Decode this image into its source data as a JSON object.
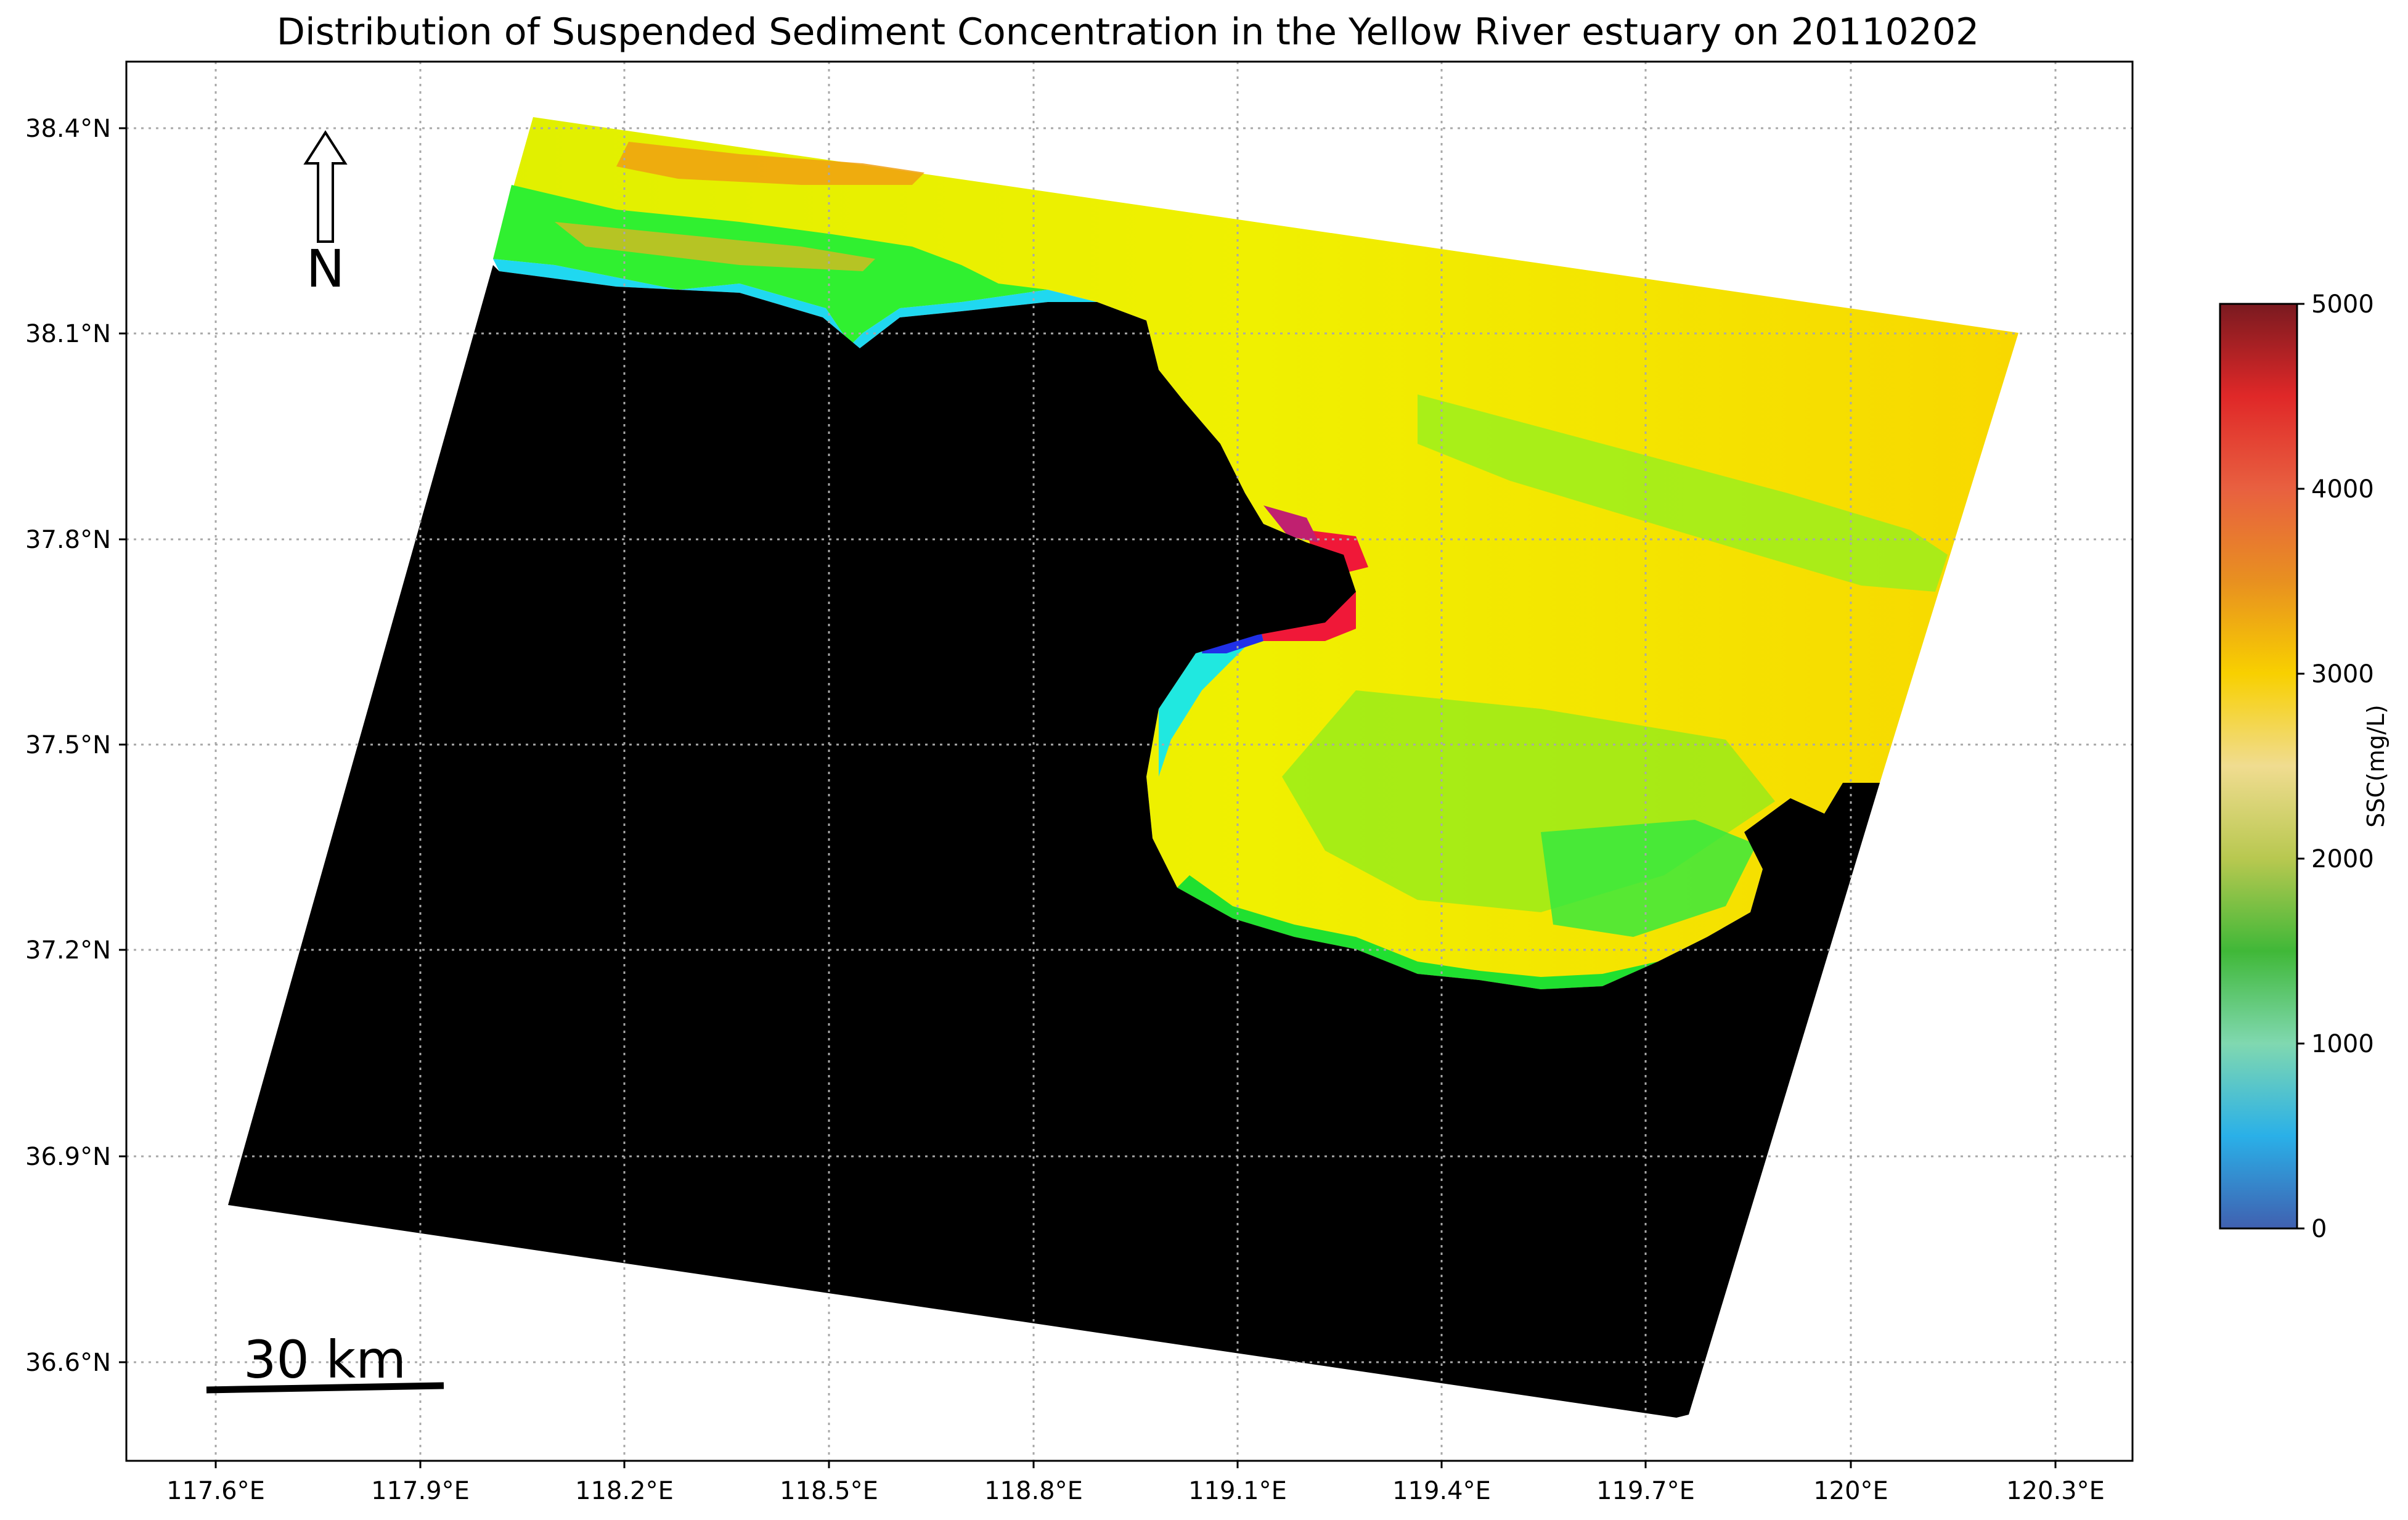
{
  "title": "Distribution of Suspended Sediment Concentration in the Yellow River estuary on 20110202",
  "map": {
    "lon_ticks": [
      "117.6°E",
      "117.9°E",
      "118.2°E",
      "118.5°E",
      "118.8°E",
      "119.1°E",
      "119.4°E",
      "119.7°E",
      "120°E",
      "120.3°E"
    ],
    "lat_ticks": [
      "38.4°N",
      "38.1°N",
      "37.8°N",
      "37.5°N",
      "37.2°N",
      "36.9°N",
      "36.6°N"
    ],
    "north_arrow_label": "N",
    "scale_bar_label": "30 km",
    "land_color": "#000000"
  },
  "colorbar": {
    "label": "SSC(mg/L)",
    "ticks": [
      "0",
      "1000",
      "2000",
      "3000",
      "4000",
      "5000"
    ],
    "range": [
      0,
      5000
    ],
    "stops": [
      "#4060b0",
      "#2ab0e8",
      "#80d8b0",
      "#40b838",
      "#b8c850",
      "#f0dc90",
      "#f8d000",
      "#e89020",
      "#e86040",
      "#e02828",
      "#7a1a20"
    ]
  },
  "chart_data": {
    "type": "heatmap",
    "title": "Distribution of Suspended Sediment Concentration in the Yellow River estuary on 20110202",
    "variable": "SSC(mg/L)",
    "value_range": [
      0,
      5000
    ],
    "lon_range": [
      117.5,
      120.45
    ],
    "lat_range": [
      36.5,
      38.5
    ],
    "grid": true
  }
}
